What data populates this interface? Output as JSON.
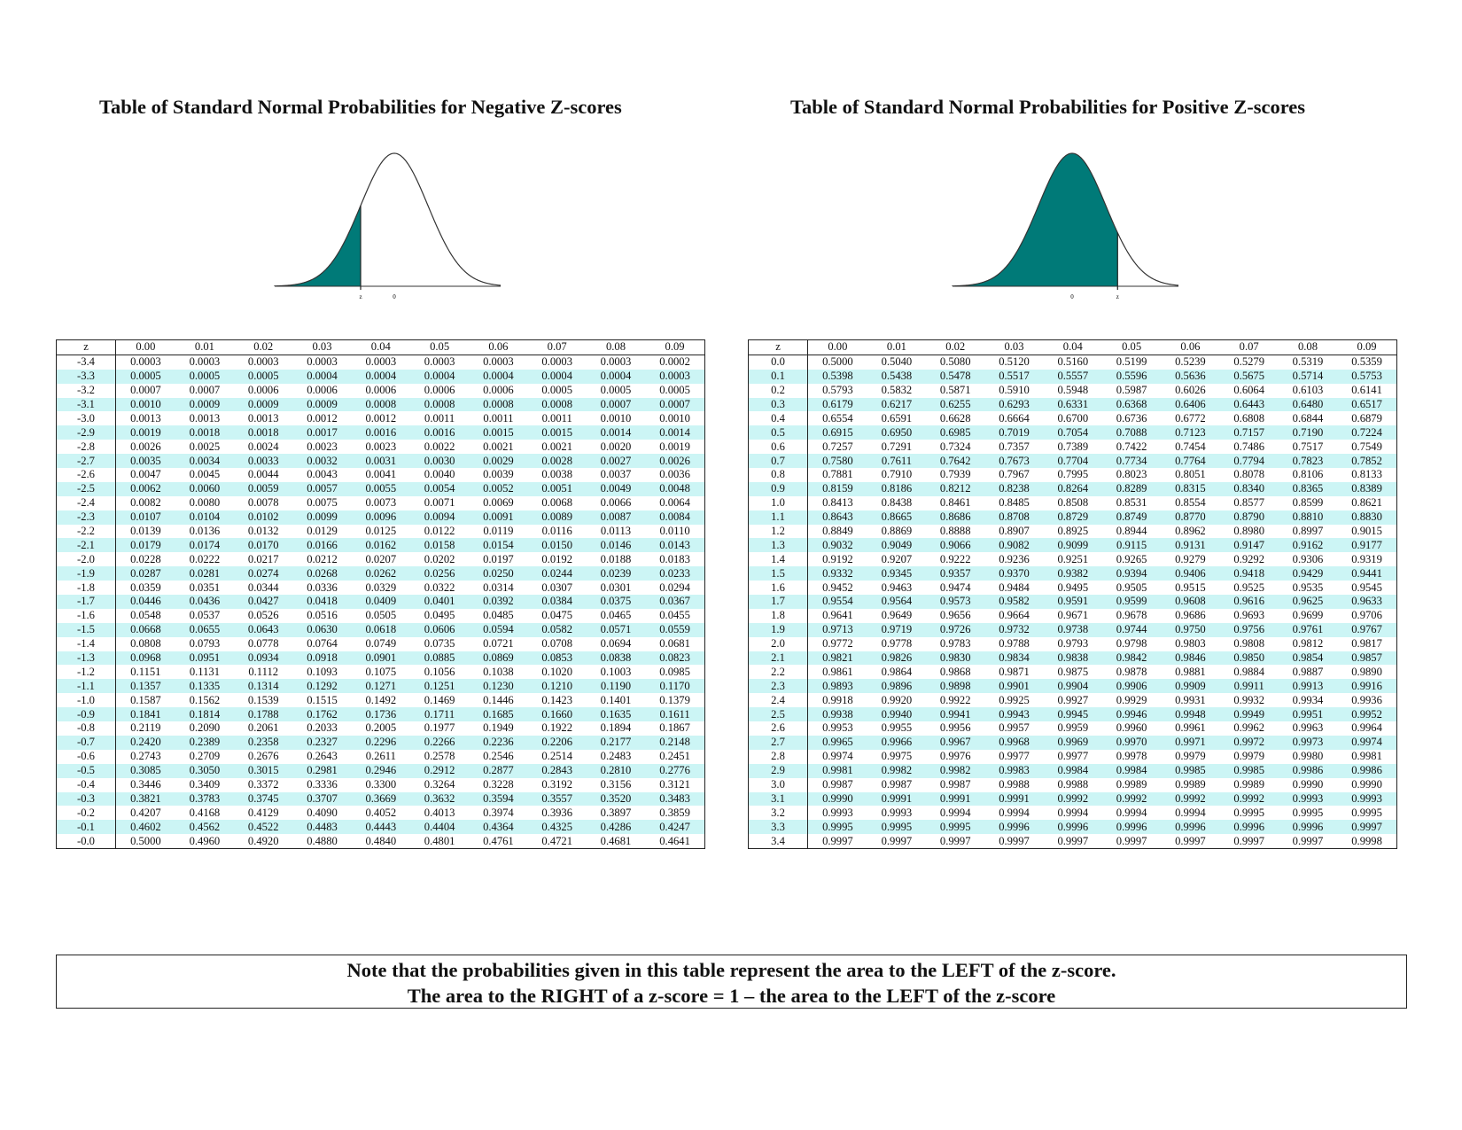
{
  "negative": {
    "title": "Table of Standard Normal Probabilities for Negative Z-scores",
    "curve": {
      "shade": "left",
      "z_label": "z",
      "zero_label": "0",
      "fill_color": "#007a78"
    },
    "header": [
      "z",
      "0.00",
      "0.01",
      "0.02",
      "0.03",
      "0.04",
      "0.05",
      "0.06",
      "0.07",
      "0.08",
      "0.09"
    ],
    "rows": [
      [
        "-3.4",
        "0.0003",
        "0.0003",
        "0.0003",
        "0.0003",
        "0.0003",
        "0.0003",
        "0.0003",
        "0.0003",
        "0.0003",
        "0.0002"
      ],
      [
        "-3.3",
        "0.0005",
        "0.0005",
        "0.0005",
        "0.0004",
        "0.0004",
        "0.0004",
        "0.0004",
        "0.0004",
        "0.0004",
        "0.0003"
      ],
      [
        "-3.2",
        "0.0007",
        "0.0007",
        "0.0006",
        "0.0006",
        "0.0006",
        "0.0006",
        "0.0006",
        "0.0005",
        "0.0005",
        "0.0005"
      ],
      [
        "-3.1",
        "0.0010",
        "0.0009",
        "0.0009",
        "0.0009",
        "0.0008",
        "0.0008",
        "0.0008",
        "0.0008",
        "0.0007",
        "0.0007"
      ],
      [
        "-3.0",
        "0.0013",
        "0.0013",
        "0.0013",
        "0.0012",
        "0.0012",
        "0.0011",
        "0.0011",
        "0.0011",
        "0.0010",
        "0.0010"
      ],
      [
        "-2.9",
        "0.0019",
        "0.0018",
        "0.0018",
        "0.0017",
        "0.0016",
        "0.0016",
        "0.0015",
        "0.0015",
        "0.0014",
        "0.0014"
      ],
      [
        "-2.8",
        "0.0026",
        "0.0025",
        "0.0024",
        "0.0023",
        "0.0023",
        "0.0022",
        "0.0021",
        "0.0021",
        "0.0020",
        "0.0019"
      ],
      [
        "-2.7",
        "0.0035",
        "0.0034",
        "0.0033",
        "0.0032",
        "0.0031",
        "0.0030",
        "0.0029",
        "0.0028",
        "0.0027",
        "0.0026"
      ],
      [
        "-2.6",
        "0.0047",
        "0.0045",
        "0.0044",
        "0.0043",
        "0.0041",
        "0.0040",
        "0.0039",
        "0.0038",
        "0.0037",
        "0.0036"
      ],
      [
        "-2.5",
        "0.0062",
        "0.0060",
        "0.0059",
        "0.0057",
        "0.0055",
        "0.0054",
        "0.0052",
        "0.0051",
        "0.0049",
        "0.0048"
      ],
      [
        "-2.4",
        "0.0082",
        "0.0080",
        "0.0078",
        "0.0075",
        "0.0073",
        "0.0071",
        "0.0069",
        "0.0068",
        "0.0066",
        "0.0064"
      ],
      [
        "-2.3",
        "0.0107",
        "0.0104",
        "0.0102",
        "0.0099",
        "0.0096",
        "0.0094",
        "0.0091",
        "0.0089",
        "0.0087",
        "0.0084"
      ],
      [
        "-2.2",
        "0.0139",
        "0.0136",
        "0.0132",
        "0.0129",
        "0.0125",
        "0.0122",
        "0.0119",
        "0.0116",
        "0.0113",
        "0.0110"
      ],
      [
        "-2.1",
        "0.0179",
        "0.0174",
        "0.0170",
        "0.0166",
        "0.0162",
        "0.0158",
        "0.0154",
        "0.0150",
        "0.0146",
        "0.0143"
      ],
      [
        "-2.0",
        "0.0228",
        "0.0222",
        "0.0217",
        "0.0212",
        "0.0207",
        "0.0202",
        "0.0197",
        "0.0192",
        "0.0188",
        "0.0183"
      ],
      [
        "-1.9",
        "0.0287",
        "0.0281",
        "0.0274",
        "0.0268",
        "0.0262",
        "0.0256",
        "0.0250",
        "0.0244",
        "0.0239",
        "0.0233"
      ],
      [
        "-1.8",
        "0.0359",
        "0.0351",
        "0.0344",
        "0.0336",
        "0.0329",
        "0.0322",
        "0.0314",
        "0.0307",
        "0.0301",
        "0.0294"
      ],
      [
        "-1.7",
        "0.0446",
        "0.0436",
        "0.0427",
        "0.0418",
        "0.0409",
        "0.0401",
        "0.0392",
        "0.0384",
        "0.0375",
        "0.0367"
      ],
      [
        "-1.6",
        "0.0548",
        "0.0537",
        "0.0526",
        "0.0516",
        "0.0505",
        "0.0495",
        "0.0485",
        "0.0475",
        "0.0465",
        "0.0455"
      ],
      [
        "-1.5",
        "0.0668",
        "0.0655",
        "0.0643",
        "0.0630",
        "0.0618",
        "0.0606",
        "0.0594",
        "0.0582",
        "0.0571",
        "0.0559"
      ],
      [
        "-1.4",
        "0.0808",
        "0.0793",
        "0.0778",
        "0.0764",
        "0.0749",
        "0.0735",
        "0.0721",
        "0.0708",
        "0.0694",
        "0.0681"
      ],
      [
        "-1.3",
        "0.0968",
        "0.0951",
        "0.0934",
        "0.0918",
        "0.0901",
        "0.0885",
        "0.0869",
        "0.0853",
        "0.0838",
        "0.0823"
      ],
      [
        "-1.2",
        "0.1151",
        "0.1131",
        "0.1112",
        "0.1093",
        "0.1075",
        "0.1056",
        "0.1038",
        "0.1020",
        "0.1003",
        "0.0985"
      ],
      [
        "-1.1",
        "0.1357",
        "0.1335",
        "0.1314",
        "0.1292",
        "0.1271",
        "0.1251",
        "0.1230",
        "0.1210",
        "0.1190",
        "0.1170"
      ],
      [
        "-1.0",
        "0.1587",
        "0.1562",
        "0.1539",
        "0.1515",
        "0.1492",
        "0.1469",
        "0.1446",
        "0.1423",
        "0.1401",
        "0.1379"
      ],
      [
        "-0.9",
        "0.1841",
        "0.1814",
        "0.1788",
        "0.1762",
        "0.1736",
        "0.1711",
        "0.1685",
        "0.1660",
        "0.1635",
        "0.1611"
      ],
      [
        "-0.8",
        "0.2119",
        "0.2090",
        "0.2061",
        "0.2033",
        "0.2005",
        "0.1977",
        "0.1949",
        "0.1922",
        "0.1894",
        "0.1867"
      ],
      [
        "-0.7",
        "0.2420",
        "0.2389",
        "0.2358",
        "0.2327",
        "0.2296",
        "0.2266",
        "0.2236",
        "0.2206",
        "0.2177",
        "0.2148"
      ],
      [
        "-0.6",
        "0.2743",
        "0.2709",
        "0.2676",
        "0.2643",
        "0.2611",
        "0.2578",
        "0.2546",
        "0.2514",
        "0.2483",
        "0.2451"
      ],
      [
        "-0.5",
        "0.3085",
        "0.3050",
        "0.3015",
        "0.2981",
        "0.2946",
        "0.2912",
        "0.2877",
        "0.2843",
        "0.2810",
        "0.2776"
      ],
      [
        "-0.4",
        "0.3446",
        "0.3409",
        "0.3372",
        "0.3336",
        "0.3300",
        "0.3264",
        "0.3228",
        "0.3192",
        "0.3156",
        "0.3121"
      ],
      [
        "-0.3",
        "0.3821",
        "0.3783",
        "0.3745",
        "0.3707",
        "0.3669",
        "0.3632",
        "0.3594",
        "0.3557",
        "0.3520",
        "0.3483"
      ],
      [
        "-0.2",
        "0.4207",
        "0.4168",
        "0.4129",
        "0.4090",
        "0.4052",
        "0.4013",
        "0.3974",
        "0.3936",
        "0.3897",
        "0.3859"
      ],
      [
        "-0.1",
        "0.4602",
        "0.4562",
        "0.4522",
        "0.4483",
        "0.4443",
        "0.4404",
        "0.4364",
        "0.4325",
        "0.4286",
        "0.4247"
      ],
      [
        "-0.0",
        "0.5000",
        "0.4960",
        "0.4920",
        "0.4880",
        "0.4840",
        "0.4801",
        "0.4761",
        "0.4721",
        "0.4681",
        "0.4641"
      ]
    ]
  },
  "positive": {
    "title": "Table of Standard Normal Probabilities for Positive Z-scores",
    "curve": {
      "shade": "left",
      "z_label": "z",
      "zero_label": "0",
      "fill_color": "#007a78"
    },
    "header": [
      "z",
      "0.00",
      "0.01",
      "0.02",
      "0.03",
      "0.04",
      "0.05",
      "0.06",
      "0.07",
      "0.08",
      "0.09"
    ],
    "rows": [
      [
        "0.0",
        "0.5000",
        "0.5040",
        "0.5080",
        "0.5120",
        "0.5160",
        "0.5199",
        "0.5239",
        "0.5279",
        "0.5319",
        "0.5359"
      ],
      [
        "0.1",
        "0.5398",
        "0.5438",
        "0.5478",
        "0.5517",
        "0.5557",
        "0.5596",
        "0.5636",
        "0.5675",
        "0.5714",
        "0.5753"
      ],
      [
        "0.2",
        "0.5793",
        "0.5832",
        "0.5871",
        "0.5910",
        "0.5948",
        "0.5987",
        "0.6026",
        "0.6064",
        "0.6103",
        "0.6141"
      ],
      [
        "0.3",
        "0.6179",
        "0.6217",
        "0.6255",
        "0.6293",
        "0.6331",
        "0.6368",
        "0.6406",
        "0.6443",
        "0.6480",
        "0.6517"
      ],
      [
        "0.4",
        "0.6554",
        "0.6591",
        "0.6628",
        "0.6664",
        "0.6700",
        "0.6736",
        "0.6772",
        "0.6808",
        "0.6844",
        "0.6879"
      ],
      [
        "0.5",
        "0.6915",
        "0.6950",
        "0.6985",
        "0.7019",
        "0.7054",
        "0.7088",
        "0.7123",
        "0.7157",
        "0.7190",
        "0.7224"
      ],
      [
        "0.6",
        "0.7257",
        "0.7291",
        "0.7324",
        "0.7357",
        "0.7389",
        "0.7422",
        "0.7454",
        "0.7486",
        "0.7517",
        "0.7549"
      ],
      [
        "0.7",
        "0.7580",
        "0.7611",
        "0.7642",
        "0.7673",
        "0.7704",
        "0.7734",
        "0.7764",
        "0.7794",
        "0.7823",
        "0.7852"
      ],
      [
        "0.8",
        "0.7881",
        "0.7910",
        "0.7939",
        "0.7967",
        "0.7995",
        "0.8023",
        "0.8051",
        "0.8078",
        "0.8106",
        "0.8133"
      ],
      [
        "0.9",
        "0.8159",
        "0.8186",
        "0.8212",
        "0.8238",
        "0.8264",
        "0.8289",
        "0.8315",
        "0.8340",
        "0.8365",
        "0.8389"
      ],
      [
        "1.0",
        "0.8413",
        "0.8438",
        "0.8461",
        "0.8485",
        "0.8508",
        "0.8531",
        "0.8554",
        "0.8577",
        "0.8599",
        "0.8621"
      ],
      [
        "1.1",
        "0.8643",
        "0.8665",
        "0.8686",
        "0.8708",
        "0.8729",
        "0.8749",
        "0.8770",
        "0.8790",
        "0.8810",
        "0.8830"
      ],
      [
        "1.2",
        "0.8849",
        "0.8869",
        "0.8888",
        "0.8907",
        "0.8925",
        "0.8944",
        "0.8962",
        "0.8980",
        "0.8997",
        "0.9015"
      ],
      [
        "1.3",
        "0.9032",
        "0.9049",
        "0.9066",
        "0.9082",
        "0.9099",
        "0.9115",
        "0.9131",
        "0.9147",
        "0.9162",
        "0.9177"
      ],
      [
        "1.4",
        "0.9192",
        "0.9207",
        "0.9222",
        "0.9236",
        "0.9251",
        "0.9265",
        "0.9279",
        "0.9292",
        "0.9306",
        "0.9319"
      ],
      [
        "1.5",
        "0.9332",
        "0.9345",
        "0.9357",
        "0.9370",
        "0.9382",
        "0.9394",
        "0.9406",
        "0.9418",
        "0.9429",
        "0.9441"
      ],
      [
        "1.6",
        "0.9452",
        "0.9463",
        "0.9474",
        "0.9484",
        "0.9495",
        "0.9505",
        "0.9515",
        "0.9525",
        "0.9535",
        "0.9545"
      ],
      [
        "1.7",
        "0.9554",
        "0.9564",
        "0.9573",
        "0.9582",
        "0.9591",
        "0.9599",
        "0.9608",
        "0.9616",
        "0.9625",
        "0.9633"
      ],
      [
        "1.8",
        "0.9641",
        "0.9649",
        "0.9656",
        "0.9664",
        "0.9671",
        "0.9678",
        "0.9686",
        "0.9693",
        "0.9699",
        "0.9706"
      ],
      [
        "1.9",
        "0.9713",
        "0.9719",
        "0.9726",
        "0.9732",
        "0.9738",
        "0.9744",
        "0.9750",
        "0.9756",
        "0.9761",
        "0.9767"
      ],
      [
        "2.0",
        "0.9772",
        "0.9778",
        "0.9783",
        "0.9788",
        "0.9793",
        "0.9798",
        "0.9803",
        "0.9808",
        "0.9812",
        "0.9817"
      ],
      [
        "2.1",
        "0.9821",
        "0.9826",
        "0.9830",
        "0.9834",
        "0.9838",
        "0.9842",
        "0.9846",
        "0.9850",
        "0.9854",
        "0.9857"
      ],
      [
        "2.2",
        "0.9861",
        "0.9864",
        "0.9868",
        "0.9871",
        "0.9875",
        "0.9878",
        "0.9881",
        "0.9884",
        "0.9887",
        "0.9890"
      ],
      [
        "2.3",
        "0.9893",
        "0.9896",
        "0.9898",
        "0.9901",
        "0.9904",
        "0.9906",
        "0.9909",
        "0.9911",
        "0.9913",
        "0.9916"
      ],
      [
        "2.4",
        "0.9918",
        "0.9920",
        "0.9922",
        "0.9925",
        "0.9927",
        "0.9929",
        "0.9931",
        "0.9932",
        "0.9934",
        "0.9936"
      ],
      [
        "2.5",
        "0.9938",
        "0.9940",
        "0.9941",
        "0.9943",
        "0.9945",
        "0.9946",
        "0.9948",
        "0.9949",
        "0.9951",
        "0.9952"
      ],
      [
        "2.6",
        "0.9953",
        "0.9955",
        "0.9956",
        "0.9957",
        "0.9959",
        "0.9960",
        "0.9961",
        "0.9962",
        "0.9963",
        "0.9964"
      ],
      [
        "2.7",
        "0.9965",
        "0.9966",
        "0.9967",
        "0.9968",
        "0.9969",
        "0.9970",
        "0.9971",
        "0.9972",
        "0.9973",
        "0.9974"
      ],
      [
        "2.8",
        "0.9974",
        "0.9975",
        "0.9976",
        "0.9977",
        "0.9977",
        "0.9978",
        "0.9979",
        "0.9979",
        "0.9980",
        "0.9981"
      ],
      [
        "2.9",
        "0.9981",
        "0.9982",
        "0.9982",
        "0.9983",
        "0.9984",
        "0.9984",
        "0.9985",
        "0.9985",
        "0.9986",
        "0.9986"
      ],
      [
        "3.0",
        "0.9987",
        "0.9987",
        "0.9987",
        "0.9988",
        "0.9988",
        "0.9989",
        "0.9989",
        "0.9989",
        "0.9990",
        "0.9990"
      ],
      [
        "3.1",
        "0.9990",
        "0.9991",
        "0.9991",
        "0.9991",
        "0.9992",
        "0.9992",
        "0.9992",
        "0.9992",
        "0.9993",
        "0.9993"
      ],
      [
        "3.2",
        "0.9993",
        "0.9993",
        "0.9994",
        "0.9994",
        "0.9994",
        "0.9994",
        "0.9994",
        "0.9995",
        "0.9995",
        "0.9995"
      ],
      [
        "3.3",
        "0.9995",
        "0.9995",
        "0.9995",
        "0.9996",
        "0.9996",
        "0.9996",
        "0.9996",
        "0.9996",
        "0.9996",
        "0.9997"
      ],
      [
        "3.4",
        "0.9997",
        "0.9997",
        "0.9997",
        "0.9997",
        "0.9997",
        "0.9997",
        "0.9997",
        "0.9997",
        "0.9997",
        "0.9998"
      ]
    ]
  },
  "note": {
    "line1": "Note that the probabilities given in this table represent the area to the  LEFT of the z-score.",
    "line2": "The area to the RIGHT of a z-score = 1 – the area to the LEFT of the z-score"
  },
  "colors": {
    "row_stripe": "#ccf5f5",
    "shade": "#007a78"
  }
}
